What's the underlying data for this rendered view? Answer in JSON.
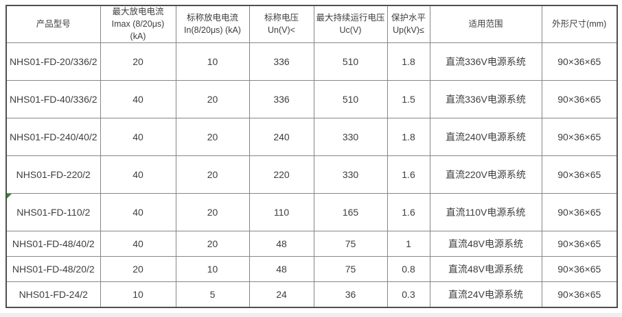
{
  "table": {
    "border_outer_color": "#4d4d4d",
    "border_inner_color": "#858585",
    "text_color": "#3d3d3d",
    "marker_color": "#2c8a2c",
    "columns": [
      {
        "id": "model",
        "label": "产品型号"
      },
      {
        "id": "imax",
        "label": "最大放电电流\nImax (8/20μs)\n(kA)"
      },
      {
        "id": "in",
        "label": "标称放电电流\nIn(8/20μs) (kA)"
      },
      {
        "id": "un",
        "label": "标称电压\nUn(V)<"
      },
      {
        "id": "uc",
        "label": "最大持续运行电压\nUc(V)"
      },
      {
        "id": "up",
        "label": "保护水平\nUp(kV)≤"
      },
      {
        "id": "scope",
        "label": "适用范围"
      },
      {
        "id": "size",
        "label": "外形尺寸(mm)"
      }
    ],
    "rows": [
      {
        "cells": [
          "NHS01-FD-20/336/2",
          "20",
          "10",
          "336",
          "510",
          "1.8",
          "直流336V电源系统",
          "90×36×65"
        ],
        "marker": false
      },
      {
        "cells": [
          "NHS01-FD-40/336/2",
          "40",
          "20",
          "336",
          "510",
          "1.5",
          "直流336V电源系统",
          "90×36×65"
        ],
        "marker": false
      },
      {
        "cells": [
          "NHS01-FD-240/40/2",
          "40",
          "20",
          "240",
          "330",
          "1.8",
          "直流240V电源系统",
          "90×36×65"
        ],
        "marker": false
      },
      {
        "cells": [
          "NHS01-FD-220/2",
          "40",
          "20",
          "220",
          "330",
          "1.6",
          "直流220V电源系统",
          "90×36×65"
        ],
        "marker": false
      },
      {
        "cells": [
          "NHS01-FD-110/2",
          "40",
          "20",
          "110",
          "165",
          "1.6",
          "直流110V电源系统",
          "90×36×65"
        ],
        "marker": true
      },
      {
        "cells": [
          "NHS01-FD-48/40/2",
          "40",
          "20",
          "48",
          "75",
          "1",
          "直流48V电源系统",
          "90×36×65"
        ],
        "marker": false
      },
      {
        "cells": [
          "NHS01-FD-48/20/2",
          "20",
          "10",
          "48",
          "75",
          "0.8",
          "直流48V电源系统",
          "90×36×65"
        ],
        "marker": false
      },
      {
        "cells": [
          "NHS01-FD-24/2",
          "10",
          "5",
          "24",
          "36",
          "0.3",
          "直流24V电源系统",
          "90×36×65"
        ],
        "marker": false
      }
    ]
  }
}
